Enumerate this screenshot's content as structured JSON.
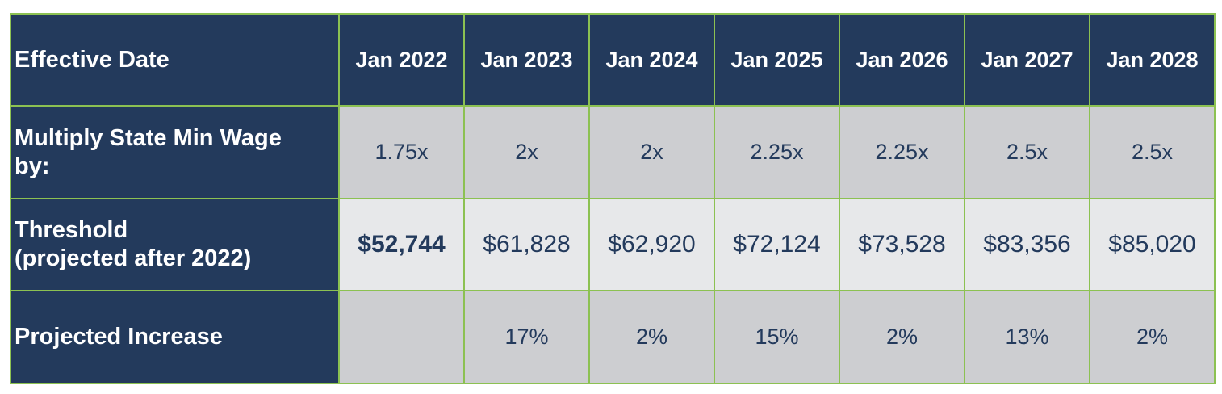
{
  "table": {
    "header_label": "Effective Date",
    "years": [
      "Jan 2022",
      "Jan 2023",
      "Jan 2024",
      "Jan 2025",
      "Jan 2026",
      "Jan 2027",
      "Jan 2028"
    ],
    "rows": {
      "multiplier": {
        "label_line1": "Multiply State Min Wage",
        "label_line2": "by:",
        "values": [
          "1.75x",
          "2x",
          "2x",
          "2.25x",
          "2.25x",
          "2.5x",
          "2.5x"
        ]
      },
      "threshold": {
        "label_line1": "Threshold",
        "label_line2": "(projected after 2022)",
        "values": [
          "$52,744",
          "$61,828",
          "$62,920",
          "$72,124",
          "$73,528",
          "$83,356",
          "$85,020"
        ]
      },
      "increase": {
        "label": "Projected Increase",
        "values": [
          "",
          "17%",
          "2%",
          "15%",
          "2%",
          "13%",
          "2%"
        ]
      }
    },
    "colors": {
      "header_bg": "#233a5c",
      "border": "#8cc152",
      "row_dark_bg": "#cdced1",
      "row_light_bg": "#e7e8ea",
      "value_text": "#233a5c"
    }
  }
}
